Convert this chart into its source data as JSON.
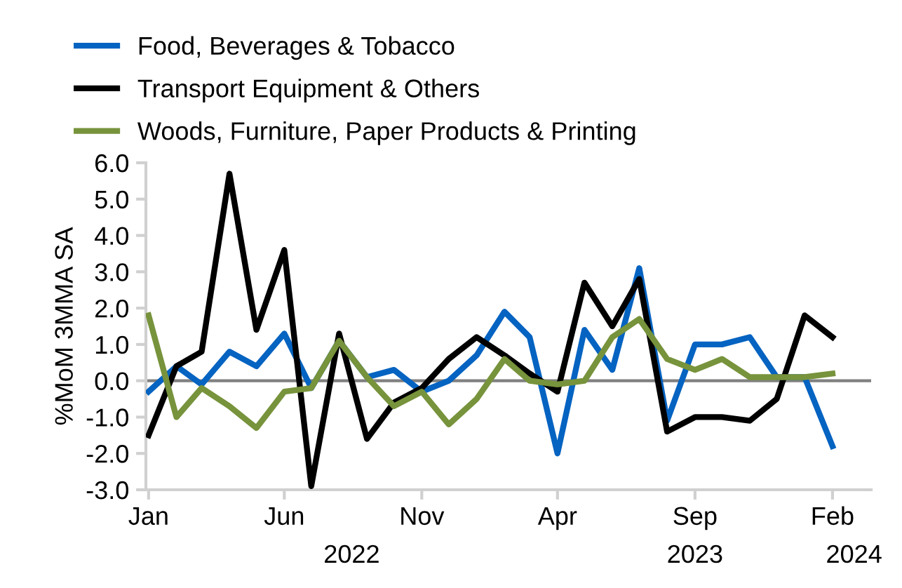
{
  "chart_data": {
    "type": "line",
    "ylabel": "%MoM 3MMA SA",
    "x": [
      "2022-01",
      "2022-02",
      "2022-03",
      "2022-04",
      "2022-05",
      "2022-06",
      "2022-07",
      "2022-08",
      "2022-09",
      "2022-10",
      "2022-11",
      "2022-12",
      "2023-01",
      "2023-02",
      "2023-03",
      "2023-04",
      "2023-05",
      "2023-06",
      "2023-07",
      "2023-08",
      "2023-09",
      "2023-10",
      "2023-11",
      "2023-12",
      "2024-01",
      "2024-02"
    ],
    "series": [
      {
        "name": "Food, Beverages & Tobacco",
        "color": "#0563c1",
        "values": [
          -0.3,
          0.4,
          -0.1,
          0.8,
          0.4,
          1.3,
          -0.2,
          1.1,
          0.1,
          0.3,
          -0.3,
          0.0,
          0.7,
          1.9,
          1.2,
          -2.0,
          1.4,
          0.3,
          3.1,
          -1.1,
          1.0,
          1.0,
          1.2,
          0.1,
          0.1,
          -1.8
        ]
      },
      {
        "name": "Transport Equipment & Others",
        "color": "#000000",
        "values": [
          -1.5,
          0.4,
          0.8,
          5.7,
          1.4,
          3.6,
          -2.9,
          1.3,
          -1.6,
          -0.6,
          -0.2,
          0.6,
          1.2,
          0.7,
          0.2,
          -0.3,
          2.7,
          1.5,
          2.8,
          -1.4,
          -1.0,
          -1.0,
          -1.1,
          -0.5,
          1.8,
          1.2
        ]
      },
      {
        "name": "Woods, Furniture, Paper Products & Printing",
        "color": "#77933c",
        "values": [
          1.8,
          -1.0,
          -0.2,
          -0.7,
          -1.3,
          -0.3,
          -0.2,
          1.1,
          0.1,
          -0.7,
          -0.3,
          -1.2,
          -0.5,
          0.6,
          0.0,
          -0.1,
          0.0,
          1.2,
          1.7,
          0.6,
          0.3,
          0.6,
          0.1,
          0.1,
          0.1,
          0.2
        ]
      }
    ],
    "xlim": [
      "2021-12-29",
      "2024-03-15"
    ],
    "xticks": [
      {
        "value": "2022-01",
        "label": "Jan"
      },
      {
        "value": "2022-06",
        "label": "Jun"
      },
      {
        "value": "2022-11",
        "label": "Nov"
      },
      {
        "value": "2023-04",
        "label": "Apr"
      },
      {
        "value": "2023-09",
        "label": "Sep"
      },
      {
        "value": "2024-02",
        "label": "Feb"
      }
    ],
    "x2lim": [
      "2021-12-29",
      "2024-03-15"
    ],
    "x2ticks": [
      {
        "value": "2022-08-15",
        "label": "2022"
      },
      {
        "value": "2023-09",
        "label": "2023"
      },
      {
        "value": "2024-02-25",
        "label": "2024"
      }
    ],
    "ylim": [
      -3,
      6
    ],
    "yticks": [
      {
        "value": -3,
        "label": "-3.0"
      },
      {
        "value": -2,
        "label": "-2.0"
      },
      {
        "value": -1,
        "label": "-1.0"
      },
      {
        "value": 0,
        "label": "0.0"
      },
      {
        "value": 1,
        "label": "1.0"
      },
      {
        "value": 2,
        "label": "2.0"
      },
      {
        "value": 3,
        "label": "3.0"
      },
      {
        "value": 4,
        "label": "4.0"
      },
      {
        "value": 5,
        "label": "5.0"
      },
      {
        "value": 6,
        "label": "6.0"
      }
    ],
    "ref_lines": [
      {
        "axis": "y",
        "value": 0,
        "color": "#808080"
      }
    ],
    "grid": false,
    "legend": "top left",
    "marker": "none",
    "line_style": "solid"
  }
}
